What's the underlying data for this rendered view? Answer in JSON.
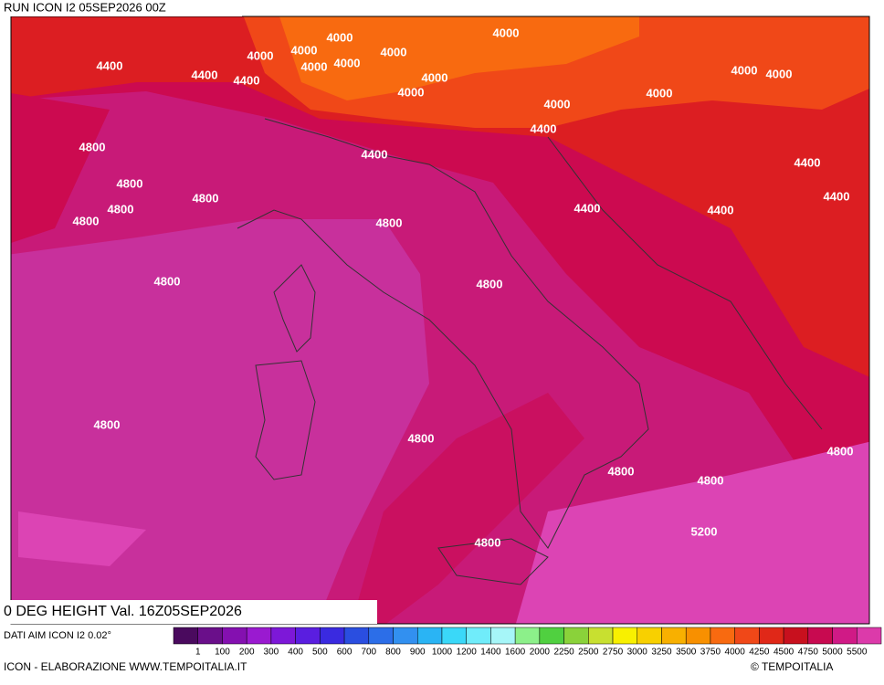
{
  "header": {
    "run": "RUN ICON I2 05SEP2026 00Z"
  },
  "map": {
    "title": "0 DEG HEIGHT Val. 16Z05SEP2026",
    "contour_labels": [
      "4400",
      "4400",
      "4400",
      "4400",
      "4400",
      "4400",
      "4400",
      "4400",
      "4400",
      "4000",
      "4000",
      "4000",
      "4000",
      "4000",
      "4000",
      "4000",
      "4000",
      "4000",
      "4000",
      "4000",
      "4000",
      "4000",
      "4800",
      "4800",
      "4800",
      "4800",
      "4800",
      "4800",
      "4800",
      "4800",
      "4800",
      "4800",
      "4800",
      "4800",
      "4800",
      "4800",
      "5200"
    ]
  },
  "legend": {
    "source": "DATI AIM ICON I2 0.02°",
    "labels": [
      "1",
      "100",
      "200",
      "300",
      "400",
      "500",
      "600",
      "700",
      "800",
      "900",
      "1000",
      "1200",
      "1400",
      "1600",
      "2000",
      "2250",
      "2500",
      "2750",
      "3000",
      "3250",
      "3500",
      "3750",
      "4000",
      "4250",
      "4500",
      "4750",
      "5000",
      "5500"
    ],
    "colors": [
      "#4a0a5e",
      "#6a0f8a",
      "#8410b0",
      "#9a1ad0",
      "#7d18d8",
      "#5a1ee0",
      "#3a2ae0",
      "#2a4ee0",
      "#2c6ee8",
      "#3290f0",
      "#2ab4f4",
      "#3ad8f8",
      "#70ecfa",
      "#a6f6f8",
      "#8cf08a",
      "#50d040",
      "#8ad23a",
      "#c8e030",
      "#f8f000",
      "#f8d000",
      "#f8b000",
      "#f89000",
      "#f86a10",
      "#f04818",
      "#e02818",
      "#c8101e",
      "#c80a50",
      "#d01a86",
      "#dc3aaa",
      "#f070d8"
    ]
  },
  "footer": {
    "credit": "ICON - ELABORAZIONE WWW.TEMPOITALIA.IT",
    "copyright": "© TEMPOITALIA"
  }
}
